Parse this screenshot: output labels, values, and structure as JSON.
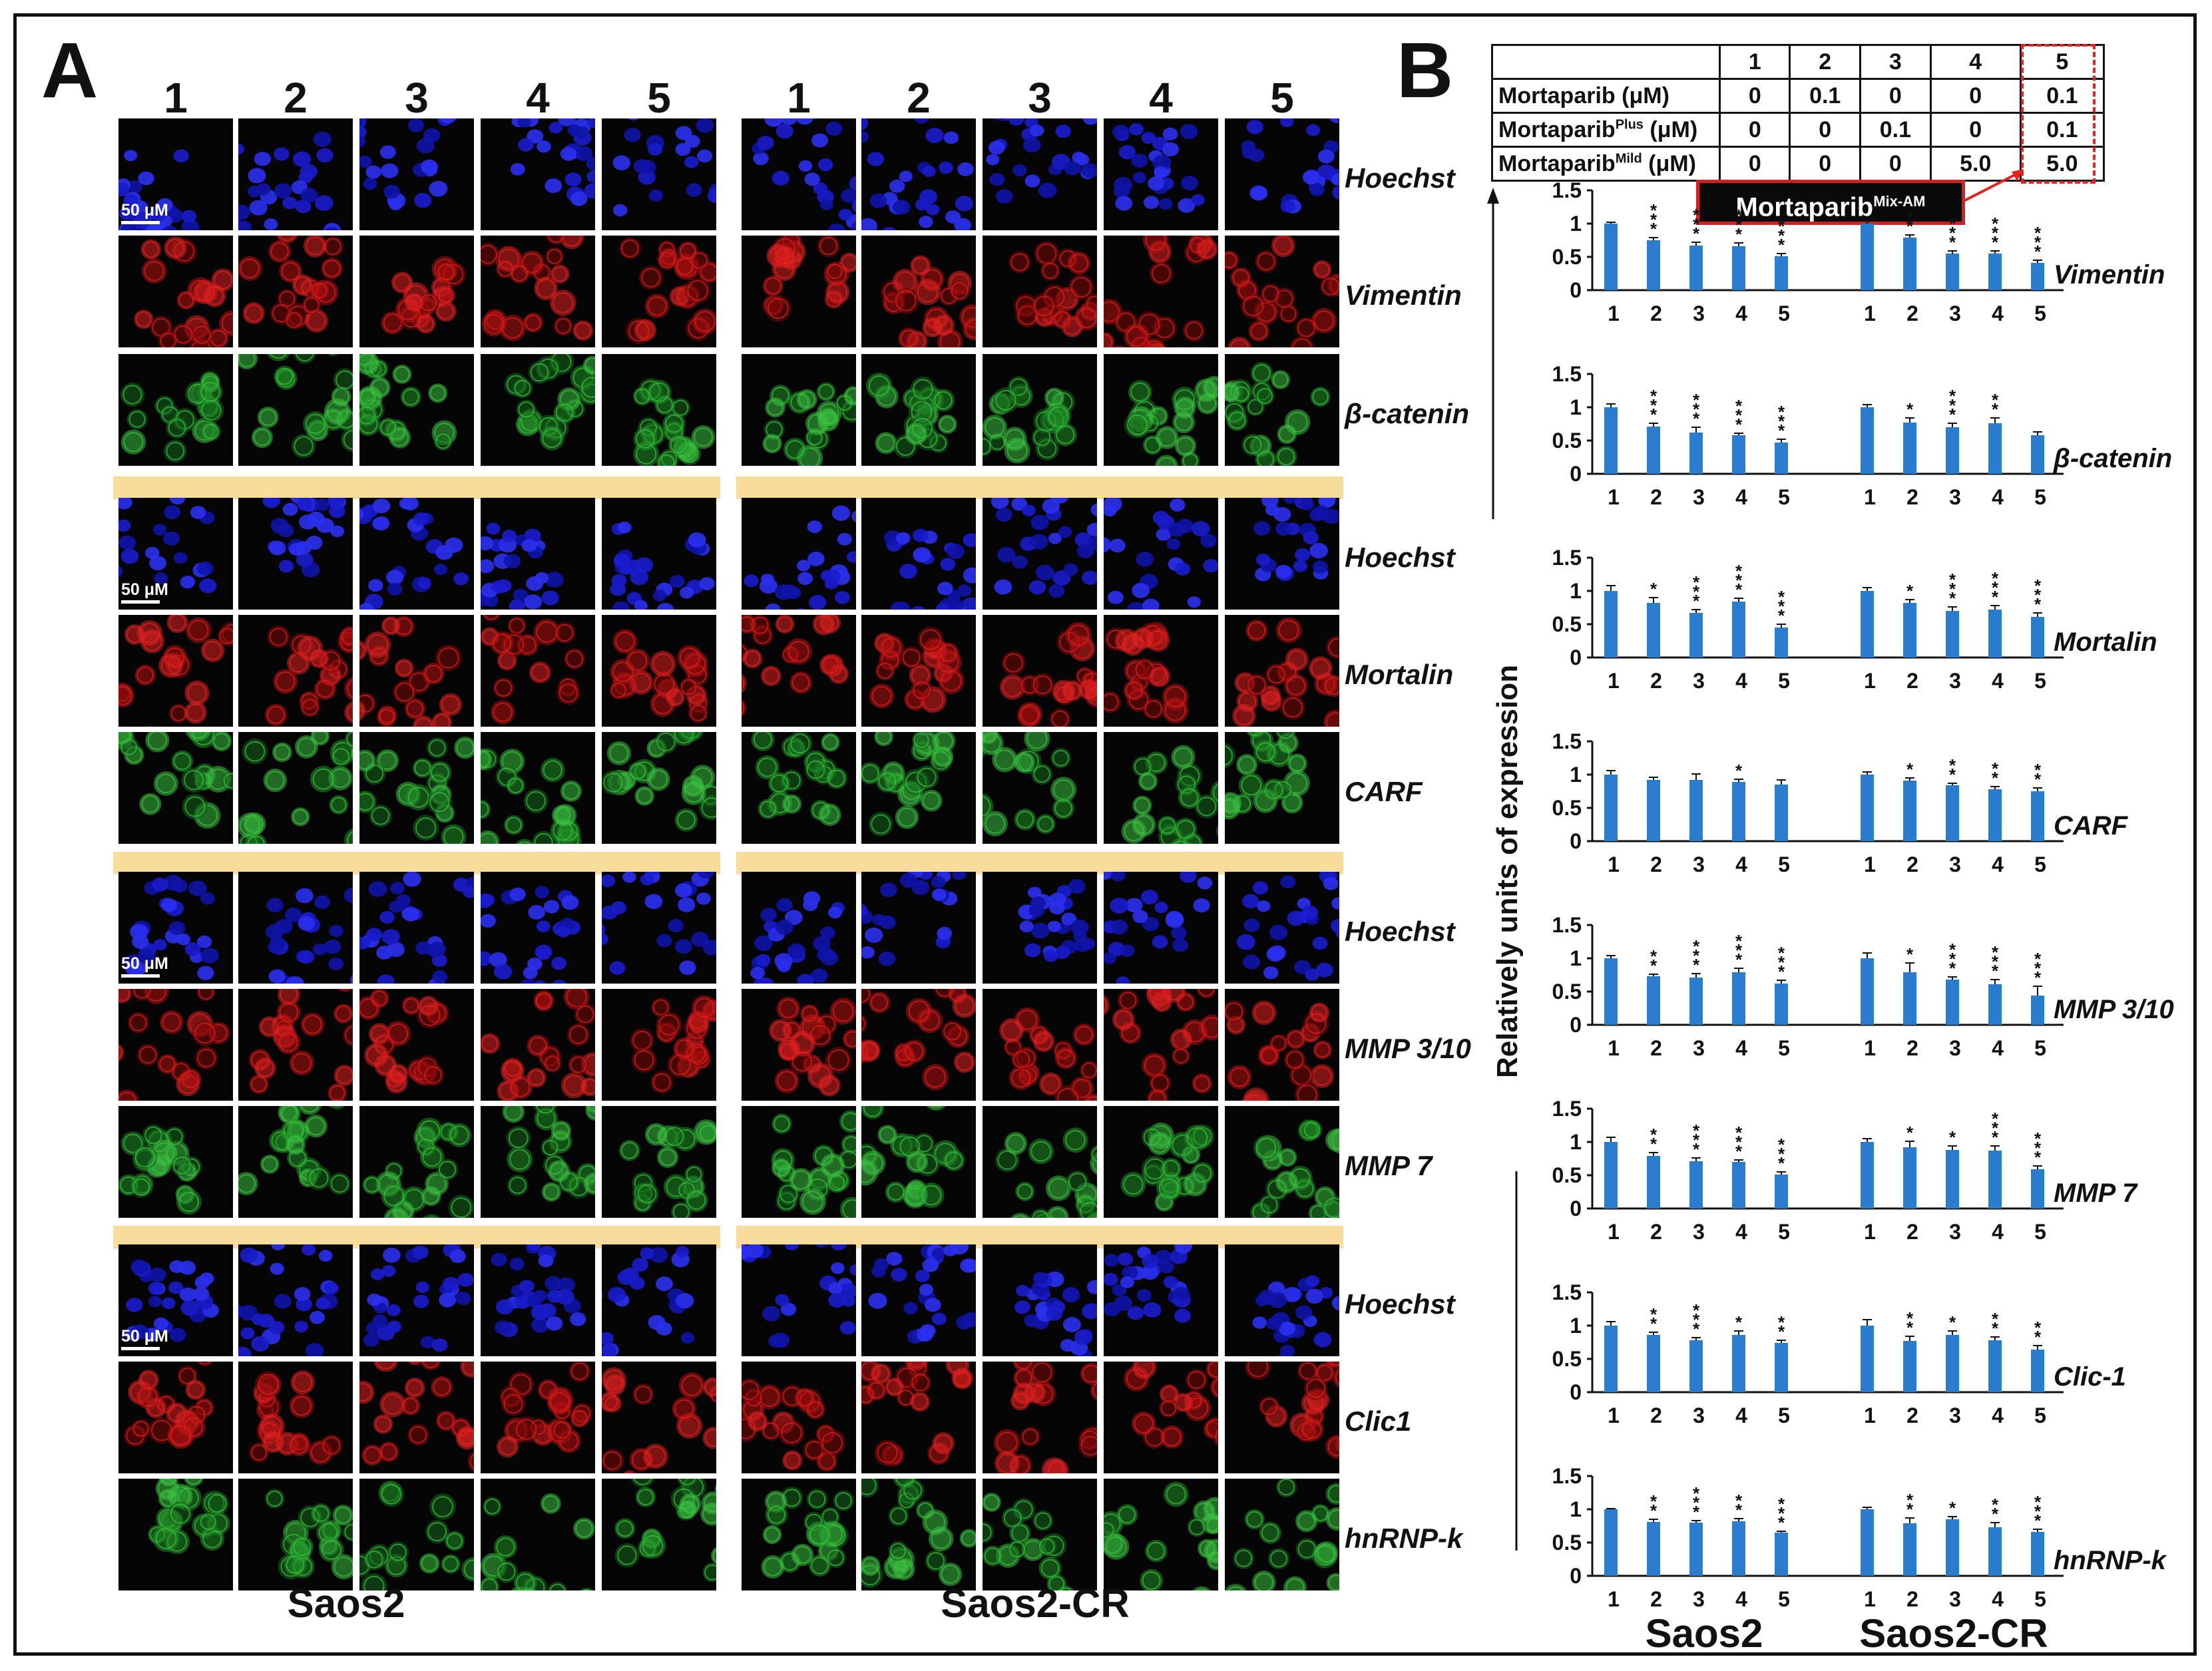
{
  "panel_a": {
    "letter": "A",
    "column_labels": [
      "1",
      "2",
      "3",
      "4",
      "5"
    ],
    "groups": [
      "Saos2",
      "Saos2-CR"
    ],
    "scale_label": "50 μM",
    "stain_rows": [
      {
        "label": "Hoechst",
        "color": "blue"
      },
      {
        "label": "Vimentin",
        "color": "red"
      },
      {
        "label": "β-catenin",
        "color": "green"
      },
      {
        "label": "Hoechst",
        "color": "blue"
      },
      {
        "label": "Mortalin",
        "color": "red"
      },
      {
        "label": "CARF",
        "color": "green"
      },
      {
        "label": "Hoechst",
        "color": "blue"
      },
      {
        "label": "MMP 3/10",
        "color": "red"
      },
      {
        "label": "MMP 7",
        "color": "green"
      },
      {
        "label": "Hoechst",
        "color": "blue"
      },
      {
        "label": "Clic1",
        "color": "red"
      },
      {
        "label": "hnRNP-k",
        "color": "green"
      }
    ],
    "colors": {
      "blue": "#1c22d8",
      "red": "#c41414",
      "green": "#24a02a",
      "separator": "#f8dc9b"
    }
  },
  "panel_b": {
    "letter": "B",
    "table": {
      "header": [
        "",
        "1",
        "2",
        "3",
        "4",
        "5"
      ],
      "rows": [
        {
          "name": "Mortaparib (μM)",
          "sup": "",
          "unit": "",
          "values": [
            "0",
            "0.1",
            "0",
            "0",
            "0.1"
          ]
        },
        {
          "name": "Mortaparib",
          "sup": "Plus",
          "unit": " (μM)",
          "values": [
            "0",
            "0",
            "0.1",
            "0",
            "0.1"
          ]
        },
        {
          "name": "Mortaparib",
          "sup": "Mild",
          "unit": " (μM)",
          "values": [
            "0",
            "0",
            "0",
            "5.0",
            "5.0"
          ]
        }
      ]
    },
    "mix_label": "Mortaparib",
    "mix_sup": "Mix-AM",
    "ylabel": "Relatively units of expression",
    "groups": [
      "Saos2",
      "Saos2-CR"
    ]
  },
  "chart_data": {
    "type": "bar",
    "categories": [
      "1",
      "2",
      "3",
      "4",
      "5"
    ],
    "groups": [
      "Saos2",
      "Saos2-CR"
    ],
    "ylim": [
      0,
      1.5
    ],
    "yticks": [
      "0",
      "0.5",
      "1",
      "1.5"
    ],
    "bar_color": "#2a7ccf",
    "panels": [
      {
        "name": "Vimentin",
        "saos2": [
          1.0,
          0.75,
          0.67,
          0.66,
          0.51
        ],
        "saos2_err": [
          0.02,
          0.04,
          0.05,
          0.05,
          0.04
        ],
        "saos2_sig": [
          "",
          "***",
          "***",
          "***",
          "***"
        ],
        "cr": [
          1.0,
          0.79,
          0.55,
          0.55,
          0.41
        ],
        "cr_err": [
          0.05,
          0.04,
          0.04,
          0.04,
          0.04
        ],
        "cr_sig": [
          "",
          "**",
          "***",
          "***",
          "***"
        ]
      },
      {
        "name": "β-catenin",
        "saos2": [
          1.0,
          0.71,
          0.62,
          0.58,
          0.47
        ],
        "saos2_err": [
          0.05,
          0.05,
          0.08,
          0.03,
          0.05
        ],
        "saos2_sig": [
          "",
          "***",
          "***",
          "***",
          "***"
        ],
        "cr": [
          1.0,
          0.77,
          0.7,
          0.76,
          0.58
        ],
        "cr_err": [
          0.04,
          0.07,
          0.06,
          0.08,
          0.05
        ],
        "cr_sig": [
          "",
          "*",
          "***",
          "**",
          ""
        ]
      },
      {
        "name": "Mortalin",
        "saos2": [
          1.0,
          0.82,
          0.67,
          0.84,
          0.45
        ],
        "saos2_err": [
          0.08,
          0.08,
          0.05,
          0.05,
          0.05
        ],
        "saos2_sig": [
          "",
          "*",
          "***",
          "***",
          "***"
        ],
        "cr": [
          1.0,
          0.82,
          0.7,
          0.72,
          0.61
        ],
        "cr_err": [
          0.05,
          0.05,
          0.06,
          0.06,
          0.06
        ],
        "cr_sig": [
          "",
          "*",
          "***",
          "***",
          "***"
        ]
      },
      {
        "name": "CARF",
        "saos2": [
          1.0,
          0.92,
          0.92,
          0.89,
          0.85
        ],
        "saos2_err": [
          0.06,
          0.04,
          0.09,
          0.04,
          0.07
        ],
        "saos2_sig": [
          "",
          "",
          "",
          "*",
          ""
        ],
        "cr": [
          1.0,
          0.91,
          0.84,
          0.78,
          0.75
        ],
        "cr_err": [
          0.04,
          0.04,
          0.03,
          0.04,
          0.05
        ],
        "cr_sig": [
          "",
          "*",
          "**",
          "**",
          "**"
        ]
      },
      {
        "name": "MMP 3/10",
        "saos2": [
          1.0,
          0.73,
          0.71,
          0.79,
          0.62
        ],
        "saos2_err": [
          0.04,
          0.03,
          0.06,
          0.06,
          0.05
        ],
        "saos2_sig": [
          "",
          "**",
          "***",
          "***",
          "***"
        ],
        "cr": [
          1.0,
          0.79,
          0.68,
          0.61,
          0.44
        ],
        "cr_err": [
          0.08,
          0.14,
          0.04,
          0.07,
          0.14
        ],
        "cr_sig": [
          "",
          "*",
          "***",
          "***",
          "***"
        ]
      },
      {
        "name": "MMP 7",
        "saos2": [
          1.0,
          0.79,
          0.71,
          0.7,
          0.51
        ],
        "saos2_err": [
          0.07,
          0.05,
          0.05,
          0.03,
          0.04
        ],
        "saos2_sig": [
          "",
          "**",
          "***",
          "***",
          "***"
        ],
        "cr": [
          1.0,
          0.92,
          0.88,
          0.87,
          0.59
        ],
        "cr_err": [
          0.05,
          0.09,
          0.06,
          0.07,
          0.05
        ],
        "cr_sig": [
          "",
          "*",
          "*",
          "***",
          "***"
        ]
      },
      {
        "name": "Clic-1",
        "saos2": [
          1.0,
          0.86,
          0.78,
          0.86,
          0.74
        ],
        "saos2_err": [
          0.06,
          0.04,
          0.04,
          0.06,
          0.04
        ],
        "saos2_sig": [
          "",
          "**",
          "***",
          "*",
          "**"
        ],
        "cr": [
          1.0,
          0.77,
          0.86,
          0.78,
          0.64
        ],
        "cr_err": [
          0.09,
          0.07,
          0.06,
          0.05,
          0.06
        ],
        "cr_sig": [
          "",
          "**",
          "*",
          "**",
          "**"
        ]
      },
      {
        "name": "hnRNP-k",
        "saos2": [
          1.0,
          0.81,
          0.8,
          0.82,
          0.65
        ],
        "saos2_err": [
          0.01,
          0.04,
          0.03,
          0.04,
          0.02
        ],
        "saos2_sig": [
          "",
          "**",
          "***",
          "**",
          "***"
        ],
        "cr": [
          1.0,
          0.79,
          0.85,
          0.73,
          0.66
        ],
        "cr_err": [
          0.03,
          0.08,
          0.04,
          0.07,
          0.04
        ],
        "cr_sig": [
          "",
          "**",
          "*",
          "**",
          "***"
        ]
      }
    ]
  }
}
